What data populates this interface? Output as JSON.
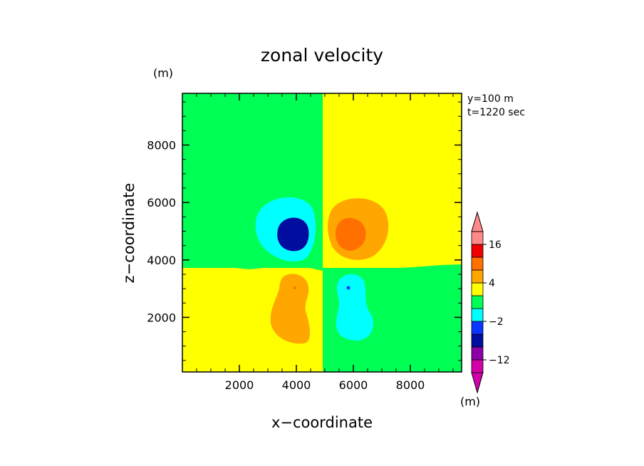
{
  "chart_data": {
    "type": "heatmap",
    "title": "zonal velocity",
    "xlabel": "x−coordinate",
    "ylabel": "z−coordinate",
    "xunit": "(m)",
    "yunit": "(m)",
    "annotations": [
      "y=100 m",
      "t=1220 sec"
    ],
    "xlim": [
      0,
      9800
    ],
    "ylim": [
      100,
      9800
    ],
    "xticks": [
      2000,
      4000,
      6000,
      8000
    ],
    "yticks": [
      2000,
      4000,
      6000,
      8000
    ],
    "xtick_labels": [
      "2000",
      "4000",
      "6000",
      "8000"
    ],
    "ytick_labels": [
      "2000",
      "4000",
      "6000",
      "8000"
    ],
    "colorbar": {
      "labels": [
        {
          "text": "16",
          "value": 16
        },
        {
          "text": "4",
          "value": 4
        },
        {
          "text": "−2",
          "value": -2
        },
        {
          "text": "−12",
          "value": -12
        }
      ],
      "colors": [
        "#d400a8",
        "#8c00a8",
        "#000d9e",
        "#0a35ff",
        "#00ffff",
        "#00ff55",
        "#ffff00",
        "#ffa600",
        "#ff7000",
        "#f00000",
        "#ff8a8a"
      ],
      "extend": "both",
      "unit": "(m)"
    },
    "background_regions": [
      {
        "region": "upper-left",
        "color": "#00ff55"
      },
      {
        "region": "upper-right",
        "color": "#ffff00"
      },
      {
        "region": "lower-left",
        "color": "#ffff00"
      },
      {
        "region": "lower-right",
        "color": "#00ff55"
      }
    ],
    "features": [
      {
        "name": "negative-vortex-upper-left",
        "center": [
          3800,
          5200
        ],
        "levels": [
          "#00ffff",
          "#000d9e"
        ]
      },
      {
        "name": "positive-vortex-upper-right",
        "center": [
          6100,
          5100
        ],
        "levels": [
          "#ffa600",
          "#ff7000"
        ]
      },
      {
        "name": "positive-lobe-lower-left",
        "center": [
          4100,
          2500
        ],
        "levels": [
          "#ffa600"
        ]
      },
      {
        "name": "negative-lobe-lower-right",
        "center": [
          5900,
          2600
        ],
        "levels": [
          "#00ffff"
        ]
      }
    ]
  }
}
